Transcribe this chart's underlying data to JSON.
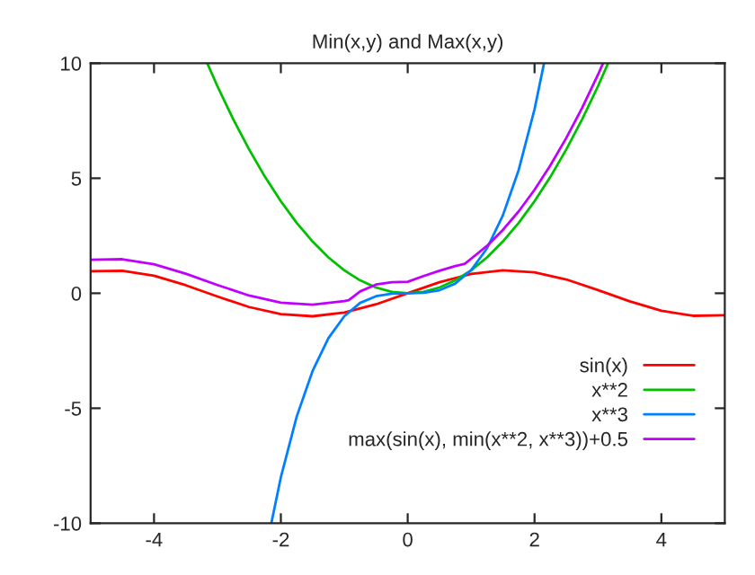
{
  "chart_data": {
    "type": "line",
    "title": "Min(x,y) and Max(x,y)",
    "xlim": [
      -5,
      5
    ],
    "ylim": [
      -10,
      10
    ],
    "xticks": [
      -4,
      -2,
      0,
      2,
      4
    ],
    "yticks": [
      -10,
      -5,
      0,
      5,
      10
    ],
    "grid": false,
    "legend": "bottom right",
    "marker": "none",
    "line_style": "solid",
    "series": [
      {
        "name": "sin(x)",
        "color": "#ff0000",
        "x": [
          -5,
          -4.5,
          -4,
          -3.5,
          -3,
          -2.5,
          -2,
          -1.5,
          -1,
          -0.5,
          0,
          0.5,
          1,
          1.5,
          2,
          2.5,
          3,
          3.5,
          4,
          4.5,
          5
        ],
        "values": [
          0.96,
          0.98,
          0.76,
          0.35,
          -0.14,
          -0.6,
          -0.91,
          -1.0,
          -0.84,
          -0.48,
          0,
          0.48,
          0.84,
          1.0,
          0.91,
          0.6,
          0.14,
          -0.35,
          -0.76,
          -0.98,
          -0.96
        ]
      },
      {
        "name": "x**2",
        "color": "#00c000",
        "x": [
          -3.16,
          -3,
          -2.75,
          -2.5,
          -2.25,
          -2,
          -1.75,
          -1.5,
          -1.25,
          -1,
          -0.75,
          -0.5,
          -0.25,
          0,
          0.25,
          0.5,
          0.75,
          1,
          1.25,
          1.5,
          1.75,
          2,
          2.25,
          2.5,
          2.75,
          3,
          3.16
        ],
        "values": [
          10,
          9,
          7.56,
          6.25,
          5.06,
          4,
          3.06,
          2.25,
          1.56,
          1,
          0.56,
          0.25,
          0.06,
          0,
          0.06,
          0.25,
          0.56,
          1,
          1.56,
          2.25,
          3.06,
          4,
          5.06,
          6.25,
          7.56,
          9,
          10
        ]
      },
      {
        "name": "x**3",
        "color": "#0080ff",
        "x": [
          -2.15,
          -2,
          -1.75,
          -1.5,
          -1.25,
          -1,
          -0.75,
          -0.5,
          -0.25,
          0,
          0.25,
          0.5,
          0.75,
          1,
          1.25,
          1.5,
          1.75,
          2,
          2.15
        ],
        "values": [
          -10,
          -8,
          -5.36,
          -3.38,
          -1.95,
          -1,
          -0.42,
          -0.13,
          -0.02,
          0,
          0.02,
          0.13,
          0.42,
          1,
          1.95,
          3.38,
          5.36,
          8,
          10
        ]
      },
      {
        "name": "max(sin(x), min(x**2, x**3))+0.5",
        "color": "#c000ff",
        "x": [
          -5,
          -4.5,
          -4,
          -3.5,
          -3,
          -2.5,
          -2,
          -1.5,
          -1,
          -0.93,
          -0.75,
          -0.5,
          -0.25,
          0,
          0.25,
          0.5,
          0.75,
          0.9,
          1,
          1.25,
          1.5,
          1.75,
          2,
          2.25,
          2.5,
          2.75,
          3,
          3.08
        ],
        "values": [
          1.46,
          1.48,
          1.26,
          0.85,
          0.36,
          -0.1,
          -0.41,
          -0.5,
          -0.34,
          -0.3,
          0.08,
          0.38,
          0.48,
          0.5,
          0.75,
          0.98,
          1.18,
          1.28,
          1.5,
          2.06,
          2.75,
          3.56,
          4.5,
          5.56,
          6.75,
          8.06,
          9.5,
          10
        ]
      }
    ]
  }
}
